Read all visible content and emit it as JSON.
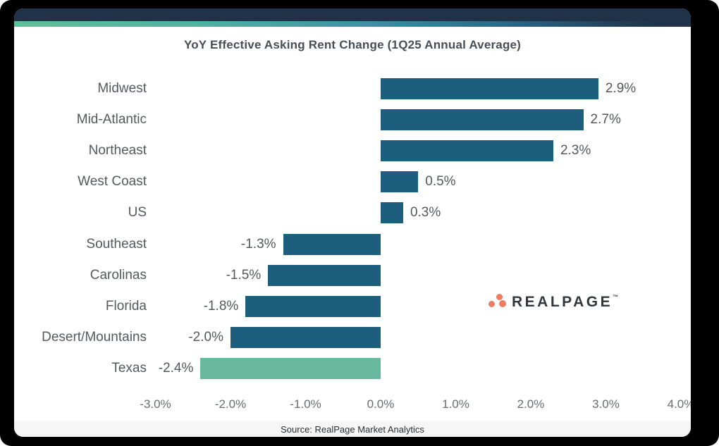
{
  "chart_data": {
    "type": "bar",
    "orientation": "horizontal",
    "title": "YoY Effective Asking Rent Change (1Q25 Annual Average)",
    "categories": [
      "Midwest",
      "Mid-Atlantic",
      "Northeast",
      "West Coast",
      "US",
      "Southeast",
      "Carolinas",
      "Florida",
      "Desert/Mountains",
      "Texas"
    ],
    "values": [
      2.9,
      2.7,
      2.3,
      0.5,
      0.3,
      -1.3,
      -1.5,
      -1.8,
      -2.0,
      -2.4
    ],
    "value_labels": [
      "2.9%",
      "2.7%",
      "2.3%",
      "0.5%",
      "0.3%",
      "-1.3%",
      "-1.5%",
      "-1.8%",
      "-2.0%",
      "-2.4%"
    ],
    "x_tick_labels": [
      "-3.0%",
      "-2.0%",
      "-1.0%",
      "0.0%",
      "1.0%",
      "2.0%",
      "3.0%",
      "4.0%"
    ],
    "x_tick_values": [
      -3,
      -2,
      -1,
      0,
      1,
      2,
      3,
      4
    ],
    "xlim": [
      -3.0,
      4.0
    ],
    "grid": false,
    "legend": "none",
    "bar_color": "#1d5e7e",
    "highlight_color": "#68b89e",
    "highlight_index": 9
  },
  "theme": {
    "header_navy": "#1f3247",
    "strip_gradient_left": "#5dc097",
    "strip_gradient_mid": "#3a92a4",
    "strip_gradient_right": "#1f3247",
    "frame_black": "#000000"
  },
  "logo": {
    "text": "REALPAGE",
    "trademark": "™",
    "dot_color": "#ee7c62"
  },
  "footer": {
    "source": "Source: RealPage Market Analytics"
  }
}
